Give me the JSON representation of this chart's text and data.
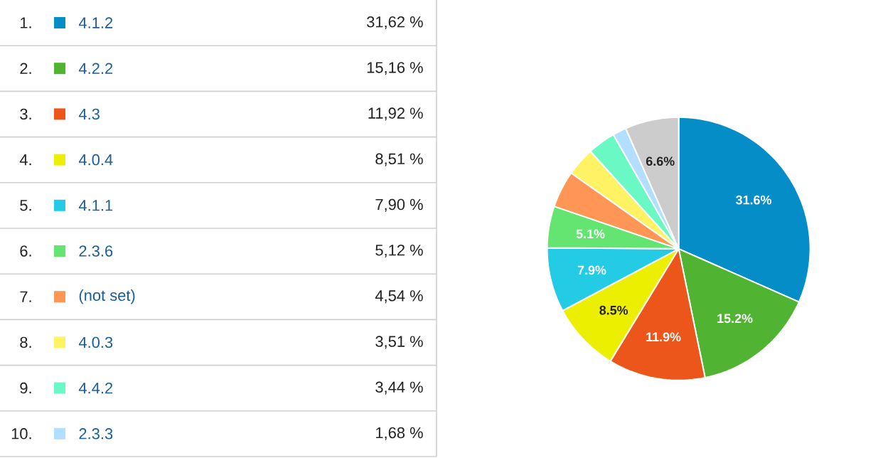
{
  "chart_data": {
    "type": "pie",
    "legend": "left",
    "categories": [
      "4.1.2",
      "4.2.2",
      "4.3",
      "4.0.4",
      "4.1.1",
      "2.3.6",
      "(not set)",
      "4.0.3",
      "4.4.2",
      "2.3.3",
      null
    ],
    "values": [
      31.62,
      15.16,
      11.92,
      8.51,
      7.9,
      5.12,
      4.54,
      3.51,
      3.44,
      1.68,
      6.6
    ],
    "colors": [
      "#058dc7",
      "#50b432",
      "#ed561b",
      "#edef00",
      "#24cbe5",
      "#64e572",
      "#ff9655",
      "#fff263",
      "#6af9c4",
      "#b2deff",
      "#cccccc"
    ],
    "value_labels": [
      "31.6%",
      "15.2%",
      "11.9%",
      "8.5%",
      "7.9%",
      "5.1%",
      null,
      null,
      null,
      null,
      "6.6%"
    ],
    "annotations": [
      "1.",
      "2.",
      "3.",
      "4.",
      "5.",
      "6.",
      "7.",
      "8.",
      "9.",
      "10.",
      "31,62 %",
      "15,16 %",
      "11,92 %",
      "8,51 %",
      "7,90 %",
      "5,12 %",
      "4,54 %",
      "3,51 %",
      "3,44 %",
      "1,68 %"
    ]
  }
}
